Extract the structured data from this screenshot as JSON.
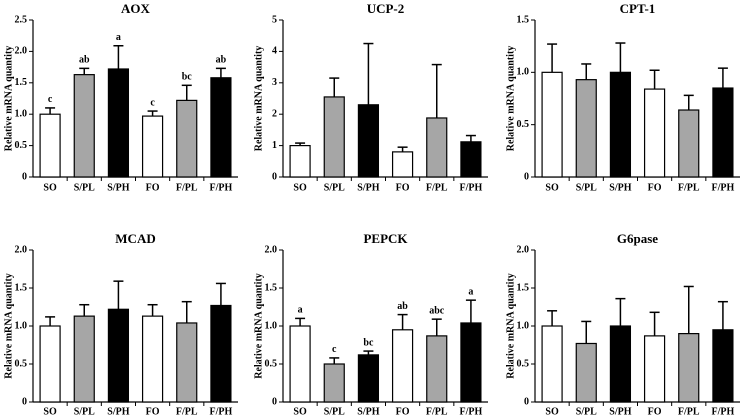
{
  "chart_data": [
    {
      "type": "bar",
      "title": "AOX",
      "y_label": "Relative mRNA quantity",
      "categories": [
        "SO",
        "S/PL",
        "S/PH",
        "FO",
        "F/PL",
        "F/PH"
      ],
      "values": [
        1.0,
        1.63,
        1.72,
        0.97,
        1.22,
        1.58
      ],
      "errors": [
        0.1,
        0.1,
        0.37,
        0.08,
        0.24,
        0.15
      ],
      "annotations": [
        "c",
        "ab",
        "a",
        "c",
        "bc",
        "ab"
      ],
      "colors": [
        "#ffffff",
        "#a6a6a6",
        "#000000",
        "#ffffff",
        "#a6a6a6",
        "#000000"
      ],
      "ylim": [
        0,
        2.5
      ],
      "yticks": [
        0,
        0.5,
        {
          "value": 1,
          "label": "1.0"
        },
        1.5,
        {
          "value": 2,
          "label": "2.0"
        },
        2.5
      ]
    },
    {
      "type": "bar",
      "title": "UCP-2",
      "y_label": "Relative mRNA quantity",
      "categories": [
        "SO",
        "S/PL",
        "S/PH",
        "FO",
        "F/PL",
        "F/PH"
      ],
      "values": [
        1.0,
        2.55,
        2.3,
        0.8,
        1.88,
        1.12
      ],
      "errors": [
        0.08,
        0.6,
        1.95,
        0.15,
        1.7,
        0.2
      ],
      "colors": [
        "#ffffff",
        "#a6a6a6",
        "#000000",
        "#ffffff",
        "#a6a6a6",
        "#000000"
      ],
      "ylim": [
        0,
        5
      ],
      "yticks": [
        0,
        1,
        2,
        3,
        4,
        5
      ]
    },
    {
      "type": "bar",
      "title": "CPT-1",
      "y_label": "Relative mRNA quantity",
      "categories": [
        "SO",
        "S/PL",
        "S/PH",
        "FO",
        "F/PL",
        "F/PH"
      ],
      "values": [
        1.0,
        0.93,
        1.0,
        0.84,
        0.64,
        0.85
      ],
      "errors": [
        0.27,
        0.15,
        0.28,
        0.18,
        0.14,
        0.19
      ],
      "colors": [
        "#ffffff",
        "#a6a6a6",
        "#000000",
        "#ffffff",
        "#a6a6a6",
        "#000000"
      ],
      "ylim": [
        0,
        1.5
      ],
      "yticks": [
        0,
        0.5,
        {
          "value": 1,
          "label": "1.0"
        },
        1.5
      ]
    },
    {
      "type": "bar",
      "title": "MCAD",
      "y_label": "Relative mRNA quantity",
      "categories": [
        "SO",
        "S/PL",
        "S/PH",
        "FO",
        "F/PL",
        "F/PH"
      ],
      "values": [
        1.0,
        1.13,
        1.22,
        1.13,
        1.04,
        1.27
      ],
      "errors": [
        0.12,
        0.15,
        0.37,
        0.15,
        0.28,
        0.29
      ],
      "colors": [
        "#ffffff",
        "#a6a6a6",
        "#000000",
        "#ffffff",
        "#a6a6a6",
        "#000000"
      ],
      "ylim": [
        0,
        2
      ],
      "yticks": [
        0,
        0.5,
        {
          "value": 1,
          "label": "1.0"
        },
        1.5,
        {
          "value": 2,
          "label": "2.0"
        }
      ]
    },
    {
      "type": "bar",
      "title": "PEPCK",
      "y_label": "Relative mRNA quantity",
      "categories": [
        "SO",
        "S/PL",
        "S/PH",
        "FO",
        "F/PL",
        "F/PH"
      ],
      "values": [
        1.0,
        0.5,
        0.62,
        0.95,
        0.87,
        1.04
      ],
      "errors": [
        0.1,
        0.08,
        0.05,
        0.2,
        0.22,
        0.3
      ],
      "annotations": [
        "a",
        "c",
        "bc",
        "ab",
        "abc",
        "a"
      ],
      "colors": [
        "#ffffff",
        "#a6a6a6",
        "#000000",
        "#ffffff",
        "#a6a6a6",
        "#000000"
      ],
      "ylim": [
        0,
        2
      ],
      "yticks": [
        0,
        0.5,
        {
          "value": 1,
          "label": "1.0"
        },
        1.5,
        {
          "value": 2,
          "label": "2.0"
        }
      ]
    },
    {
      "type": "bar",
      "title": "G6pase",
      "y_label": "Relative mRNA quantity",
      "categories": [
        "SO",
        "S/PL",
        "S/PH",
        "FO",
        "F/PL",
        "F/PH"
      ],
      "values": [
        1.0,
        0.77,
        1.0,
        0.87,
        0.9,
        0.95
      ],
      "errors": [
        0.2,
        0.29,
        0.36,
        0.31,
        0.62,
        0.37
      ],
      "colors": [
        "#ffffff",
        "#a6a6a6",
        "#000000",
        "#ffffff",
        "#a6a6a6",
        "#000000"
      ],
      "ylim": [
        0,
        2
      ],
      "yticks": [
        0,
        0.5,
        {
          "value": 1,
          "label": "1.0"
        },
        1.5,
        {
          "value": 2,
          "label": "2.0"
        }
      ]
    }
  ]
}
